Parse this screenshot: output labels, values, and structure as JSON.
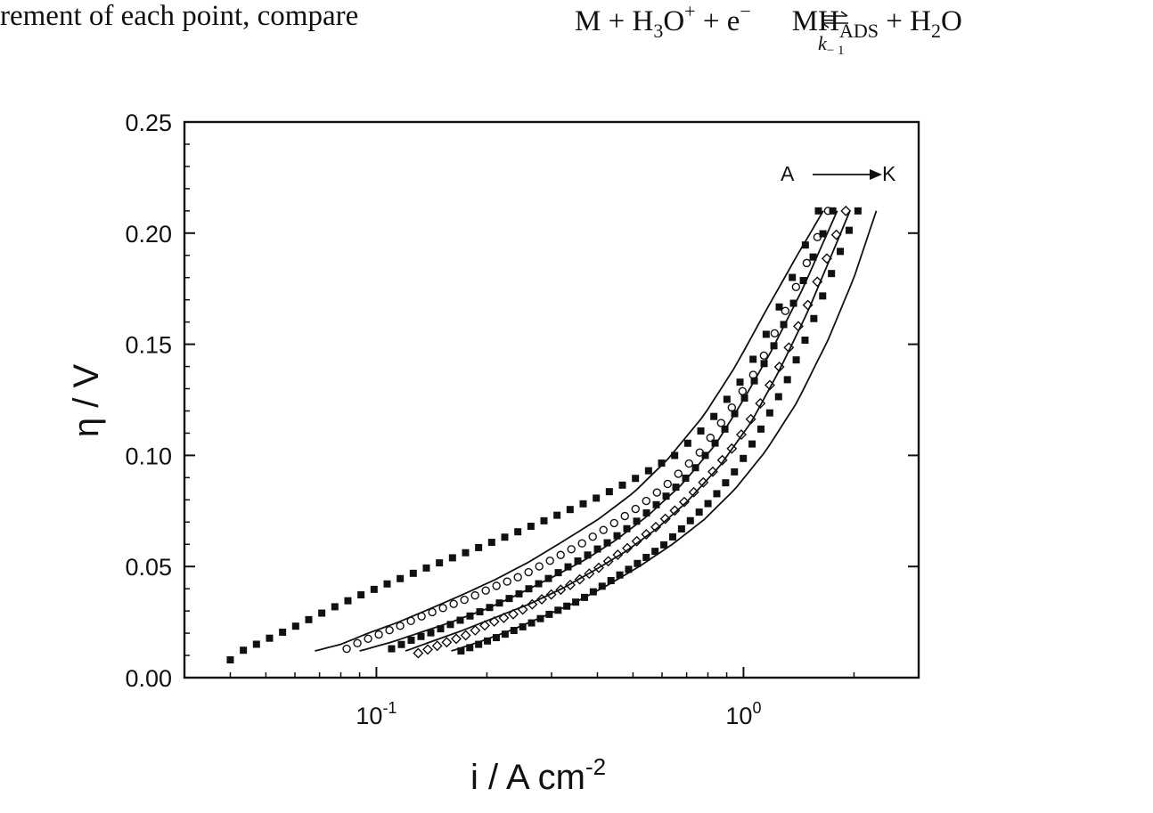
{
  "page": {
    "text_left": "rement of each point, compare",
    "equation": {
      "M": "M",
      "plus1": " + ",
      "H3": "H",
      "sub3": "3",
      "O": "O",
      "sup_plus": "+",
      "plus2": " + ",
      "e": "e",
      "sup_minus": "−",
      "product1": "MH",
      "sub_ads": "ADS",
      "plus3": " + ",
      "H2": "H",
      "sub2": "2",
      "O2": "O",
      "rate_k": "k",
      "rate_sub": "− 1"
    }
  },
  "chart_data": {
    "type": "scatter",
    "title": "",
    "xlabel": "i / A cm",
    "xlabel_sup": "-2",
    "ylabel": "η / V",
    "xscale": "log",
    "xlim": [
      0.03,
      3.0
    ],
    "ylim": [
      0.0,
      0.25
    ],
    "yticks": [
      0.0,
      0.05,
      0.1,
      0.15,
      0.2,
      0.25
    ],
    "ytick_labels": [
      "0.00",
      "0.05",
      "0.10",
      "0.15",
      "0.20",
      "0.25"
    ],
    "xticks": [
      0.1,
      1.0
    ],
    "xtick_labels": [
      {
        "base": "10",
        "exp": "-1"
      },
      {
        "base": "10",
        "exp": "0"
      }
    ],
    "grid": false,
    "annotation": {
      "from": "A",
      "to": "K"
    },
    "series": [
      {
        "marker": "square-filled",
        "i0": 0.04,
        "i_max": 1.6,
        "x": [
          0.04,
          0.043,
          0.05,
          0.06,
          0.075,
          0.09,
          0.11,
          0.14,
          0.18,
          0.23,
          0.3,
          0.4,
          0.5,
          0.65,
          0.8,
          1.0,
          1.2,
          1.4,
          1.6
        ],
        "y": [
          0.008,
          0.012,
          0.017,
          0.023,
          0.031,
          0.037,
          0.043,
          0.05,
          0.057,
          0.064,
          0.072,
          0.081,
          0.089,
          0.1,
          0.114,
          0.135,
          0.16,
          0.185,
          0.21
        ]
      },
      {
        "marker": "circle-open",
        "i0": 0.083,
        "i_max": 1.7,
        "x": [
          0.083,
          0.09,
          0.1,
          0.115,
          0.13,
          0.15,
          0.18,
          0.21,
          0.25,
          0.3,
          0.36,
          0.43,
          0.52,
          0.62,
          0.75,
          0.9,
          1.1,
          1.3,
          1.5,
          1.7
        ],
        "y": [
          0.013,
          0.016,
          0.019,
          0.023,
          0.027,
          0.031,
          0.036,
          0.041,
          0.046,
          0.053,
          0.06,
          0.068,
          0.077,
          0.087,
          0.1,
          0.118,
          0.14,
          0.165,
          0.188,
          0.21
        ]
      },
      {
        "marker": "square-filled",
        "i0": 0.11,
        "i_max": 1.75,
        "x": [
          0.11,
          0.125,
          0.145,
          0.17,
          0.2,
          0.24,
          0.29,
          0.35,
          0.42,
          0.5,
          0.6,
          0.72,
          0.86,
          1.0,
          1.2,
          1.4,
          1.6,
          1.75
        ],
        "y": [
          0.013,
          0.017,
          0.021,
          0.026,
          0.031,
          0.037,
          0.044,
          0.052,
          0.06,
          0.069,
          0.08,
          0.092,
          0.108,
          0.125,
          0.148,
          0.172,
          0.195,
          0.21
        ]
      },
      {
        "marker": "diamond-open",
        "i0": 0.13,
        "i_max": 1.9,
        "x": [
          0.13,
          0.15,
          0.175,
          0.2,
          0.24,
          0.28,
          0.34,
          0.4,
          0.48,
          0.57,
          0.68,
          0.8,
          0.95,
          1.1,
          1.3,
          1.5,
          1.7,
          1.9
        ],
        "y": [
          0.011,
          0.015,
          0.019,
          0.024,
          0.029,
          0.035,
          0.042,
          0.049,
          0.058,
          0.067,
          0.078,
          0.09,
          0.105,
          0.122,
          0.145,
          0.168,
          0.19,
          0.21
        ]
      },
      {
        "marker": "square-filled",
        "i0": 0.17,
        "i_max": 2.05,
        "x": [
          0.17,
          0.19,
          0.22,
          0.26,
          0.3,
          0.36,
          0.42,
          0.5,
          0.6,
          0.7,
          0.82,
          0.96,
          1.1,
          1.3,
          1.5,
          1.7,
          1.9,
          2.05
        ],
        "y": [
          0.012,
          0.015,
          0.019,
          0.024,
          0.029,
          0.035,
          0.042,
          0.05,
          0.059,
          0.069,
          0.08,
          0.094,
          0.11,
          0.132,
          0.155,
          0.178,
          0.198,
          0.21
        ]
      },
      {
        "marker": "line",
        "i0": 0.068,
        "i_max": 1.65,
        "x": [
          0.068,
          0.08,
          0.095,
          0.115,
          0.14,
          0.17,
          0.21,
          0.26,
          0.32,
          0.4,
          0.5,
          0.62,
          0.78,
          0.95,
          1.15,
          1.4,
          1.65
        ],
        "y": [
          0.012,
          0.015,
          0.02,
          0.025,
          0.031,
          0.037,
          0.044,
          0.052,
          0.061,
          0.071,
          0.083,
          0.098,
          0.118,
          0.14,
          0.165,
          0.19,
          0.21
        ]
      },
      {
        "marker": "line",
        "i0": 0.09,
        "i_max": 1.8,
        "x": [
          0.09,
          0.11,
          0.13,
          0.16,
          0.2,
          0.24,
          0.3,
          0.37,
          0.45,
          0.55,
          0.68,
          0.84,
          1.0,
          1.2,
          1.45,
          1.8
        ],
        "y": [
          0.012,
          0.016,
          0.02,
          0.025,
          0.031,
          0.037,
          0.045,
          0.053,
          0.062,
          0.073,
          0.087,
          0.105,
          0.125,
          0.148,
          0.175,
          0.21
        ]
      },
      {
        "marker": "line",
        "i0": 0.12,
        "i_max": 1.95,
        "x": [
          0.12,
          0.14,
          0.17,
          0.21,
          0.26,
          0.32,
          0.39,
          0.48,
          0.58,
          0.7,
          0.86,
          1.05,
          1.25,
          1.5,
          1.95
        ],
        "y": [
          0.012,
          0.016,
          0.021,
          0.027,
          0.033,
          0.04,
          0.048,
          0.057,
          0.067,
          0.079,
          0.095,
          0.115,
          0.138,
          0.165,
          0.21
        ]
      },
      {
        "marker": "line",
        "i0": 0.16,
        "i_max": 2.3,
        "x": [
          0.16,
          0.19,
          0.23,
          0.28,
          0.34,
          0.42,
          0.52,
          0.64,
          0.78,
          0.95,
          1.15,
          1.4,
          1.7,
          2.0,
          2.3
        ],
        "y": [
          0.012,
          0.016,
          0.021,
          0.027,
          0.033,
          0.041,
          0.05,
          0.06,
          0.071,
          0.085,
          0.102,
          0.124,
          0.152,
          0.18,
          0.21
        ]
      }
    ]
  }
}
